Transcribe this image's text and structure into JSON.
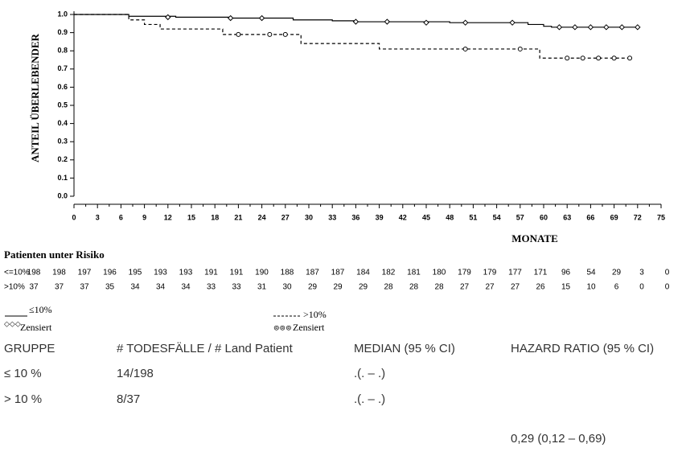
{
  "chart_data": {
    "type": "step",
    "y_label": "ANTEIL ÜBERLEBENDER",
    "x_label": "MONATE",
    "xlim": [
      0,
      75
    ],
    "ylim": [
      0,
      1
    ],
    "xticks": [
      0,
      3,
      6,
      9,
      12,
      15,
      18,
      21,
      24,
      27,
      30,
      33,
      36,
      39,
      42,
      45,
      48,
      51,
      54,
      57,
      60,
      63,
      66,
      69,
      72,
      75
    ],
    "yticks": [
      {
        "value": 0,
        "label": "0.0"
      },
      0.1,
      0.2,
      0.3,
      0.4,
      0.5,
      0.6,
      0.7,
      0.8,
      0.9,
      {
        "value": 1,
        "label": "1.0"
      }
    ],
    "series": [
      {
        "name": "≤10%",
        "color": "#000000",
        "dash": false,
        "x": [
          0,
          7,
          13,
          20,
          28,
          33,
          36,
          48,
          58,
          60,
          61,
          72
        ],
        "values": [
          1.0,
          0.99,
          0.985,
          0.98,
          0.97,
          0.965,
          0.96,
          0.955,
          0.945,
          0.935,
          0.93,
          0.93
        ],
        "censored_label": "Zensiert",
        "censored_x": [
          12,
          20,
          24,
          36,
          40,
          45,
          50,
          56,
          62,
          64,
          66,
          68,
          70,
          72
        ],
        "censored_values": [
          0.985,
          0.98,
          0.98,
          0.96,
          0.96,
          0.955,
          0.955,
          0.955,
          0.93,
          0.93,
          0.93,
          0.93,
          0.93,
          0.93
        ]
      },
      {
        "name": ">10%",
        "color": "#000000",
        "dash": true,
        "x": [
          0,
          7,
          9,
          11,
          19,
          29,
          39,
          59.5,
          71
        ],
        "values": [
          1.0,
          0.97,
          0.945,
          0.92,
          0.89,
          0.84,
          0.81,
          0.76,
          0.76
        ],
        "censored_label": "Zensiert",
        "censored_x": [
          21,
          25,
          27,
          50,
          57,
          63,
          65,
          67,
          69,
          71
        ],
        "censored_values": [
          0.89,
          0.89,
          0.89,
          0.81,
          0.81,
          0.76,
          0.76,
          0.76,
          0.76,
          0.76
        ]
      }
    ]
  },
  "risk_table": {
    "title": "Patienten unter Risiko",
    "rows": [
      {
        "label": "<=10%",
        "values": [
          "198",
          "198",
          "197",
          "196",
          "195",
          "193",
          "193",
          "191",
          "191",
          "190",
          "188",
          "187",
          "187",
          "184",
          "182",
          "181",
          "180",
          "179",
          "179",
          "177",
          "171",
          "96",
          "54",
          "29",
          "3",
          "0"
        ]
      },
      {
        "label": ">10%",
        "values": [
          "37",
          "37",
          "37",
          "35",
          "34",
          "34",
          "34",
          "33",
          "33",
          "31",
          "30",
          "29",
          "29",
          "29",
          "28",
          "28",
          "28",
          "27",
          "27",
          "27",
          "26",
          "15",
          "10",
          "6",
          "0",
          "0"
        ]
      }
    ]
  },
  "table": {
    "header": [
      "GRUPPE",
      "# TODESFÄLLE / # Land Patient",
      "MEDIAN (95 % CI)",
      "HAZARD RATIO (95 % CI)"
    ],
    "rows": [
      [
        "≤ 10 %",
        "14/198",
        ".(. – .)"
      ],
      [
        "> 10 %",
        "8/37",
        ".(. – .)"
      ]
    ],
    "hazard_ratio": "0,29 (0,12 – 0,69)"
  }
}
